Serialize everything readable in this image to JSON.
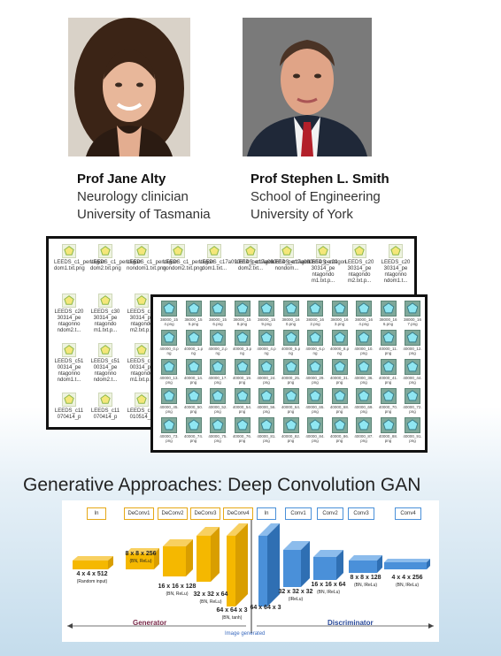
{
  "people": [
    {
      "name": "Prof Jane Alty",
      "line1": "Neurology clinician",
      "line2": "University of Tasmania"
    },
    {
      "name": "Prof Stephen L. Smith",
      "line1": "School of Engineering",
      "line2": "University of York"
    }
  ],
  "explorer_back": {
    "files": [
      "LEEDS_c1_pentagon dom1.txt.png",
      "LEEDS_c1_pentagon dom2.txt.png",
      "LEEDS_c1_pentagon nondom1.txt.png",
      "LEEDS_c1_pentagon nondom2.txt.png",
      "LEEDS_c17a090614_pentagon dom1.txt...",
      "LEEDS_c17a090614_pentagon dom2.txt...",
      "LEEDS_c17a090614_pentagon nondom...",
      "LEEDS_c20 30314_pe ntagondo m1.txt.p...",
      "LEEDS_c20 30314_pe ntagondo m2.txt.p...",
      "LEEDS_c20 30314_pe ntagonno ndom1.t...",
      "LEEDS_c20 30314_pe ntagonno ndom2.t...",
      "LEEDS_c30 30314_pe ntagondo m1.txt.p...",
      "LEEDS_c30 30314_pe ntagondo m2.txt.p...",
      "LEEDS_c51 00314_pe ntagonno ndom1.t...",
      "LEEDS_c51 00314_pe ntagonno ndom2.t...",
      "LEEDS_c61 00314_pe ntagondo m1.txt.p...",
      "LEEDS_c11 070414_p",
      "LEEDS_c11 070414_p",
      "LEEDS_c12 010514_p"
    ]
  },
  "explorer_front": {
    "files": [
      "38000_15 4.png",
      "38000_15 5.png",
      "38000_15 6.png",
      "38000_15 8.png",
      "38000_15 9.png",
      "38000_16 0.png",
      "38000_16 2.png",
      "38000_16 3.png",
      "38000_16 4.png",
      "38000_16 6.png",
      "38000_16 7.png",
      "40000_0.p ng",
      "40000_1.p ng",
      "40000_2.p ng",
      "40000_3.p ng",
      "40000_4.p ng",
      "40000_5.p ng",
      "40000_6.p ng",
      "40000_8.p ng",
      "40000_10. png",
      "40000_11. png",
      "40000_12. png",
      "40000_13. png",
      "40000_14. png",
      "40000_17. png",
      "40000_19. png",
      "40000_24. png",
      "40000_25. png",
      "40000_29. png",
      "40000_31. png",
      "40000_36. png",
      "40000_41. png",
      "40000_44. png",
      "40000_45. png",
      "40000_50. png",
      "40000_52. png",
      "40000_54. png",
      "40000_56. png",
      "40000_64. png",
      "40000_65. png",
      "40000_68. png",
      "40000_69. png",
      "40000_70. png",
      "40000_72. png",
      "40000_73. png",
      "40000_74. png",
      "40000_75. png",
      "40000_76. png",
      "40000_81. png",
      "40000_82. png",
      "40000_84. png",
      "40000_86. png",
      "40000_87. png",
      "40000_88. png",
      "40000_91. png"
    ]
  },
  "heading": "Generative Approaches: Deep Convolution GAN",
  "gan": {
    "top_labels_gen": [
      "In",
      "DeConv1",
      "DeConv2",
      "DeConv3",
      "DeConv4"
    ],
    "top_labels_disc": [
      "In",
      "Conv1",
      "Conv2",
      "Conv3",
      "Conv4"
    ],
    "gen_dims": [
      {
        "d": "4 x 4 x 512",
        "s": "(Random input)"
      },
      {
        "d": "8 x 8 x 256",
        "s": "(BN, ReLu)"
      },
      {
        "d": "16 x 16 x 128",
        "s": "(BN, ReLu)"
      },
      {
        "d": "32 x 32 x 64",
        "s": "(BN, ReLu)"
      },
      {
        "d": "64 x 64 x 3",
        "s": "(BN, tanh)"
      }
    ],
    "disc_dims": [
      {
        "d": "64 x 64 x 3",
        "s": ""
      },
      {
        "d": "32 x 32 x 32",
        "s": "(lReLu)"
      },
      {
        "d": "16 x 16 x 64",
        "s": "(BN, lReLu)"
      },
      {
        "d": "8 x 8 x 128",
        "s": "(BN, lReLu)"
      },
      {
        "d": "4 x 4 x 256",
        "s": "(BN, lReLu)"
      }
    ],
    "generator_label": "Generator",
    "discriminator_label": "Discriminator",
    "image_generated_label": "Image generated",
    "colors": {
      "gen": "#f5b800",
      "disc": "#4a90d9"
    }
  }
}
